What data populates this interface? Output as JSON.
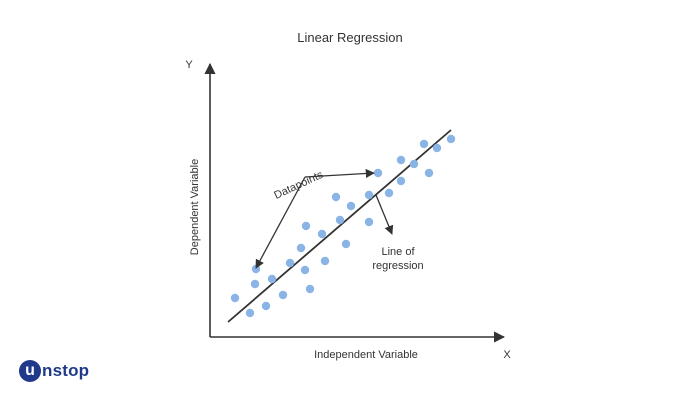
{
  "title": "Linear Regression",
  "y_axis_letter": "Y",
  "x_axis_letter": "X",
  "y_axis_label": "Dependent Variable",
  "x_axis_label": "Independent Variable",
  "annotations": {
    "datapoints": "Datapoints",
    "regression_line_1": "Line of",
    "regression_line_2": "regression"
  },
  "colors": {
    "point": "#8ab4e6",
    "axis": "#333333",
    "line": "#333333"
  },
  "logo": {
    "badge": "u",
    "text": "nstop"
  }
}
